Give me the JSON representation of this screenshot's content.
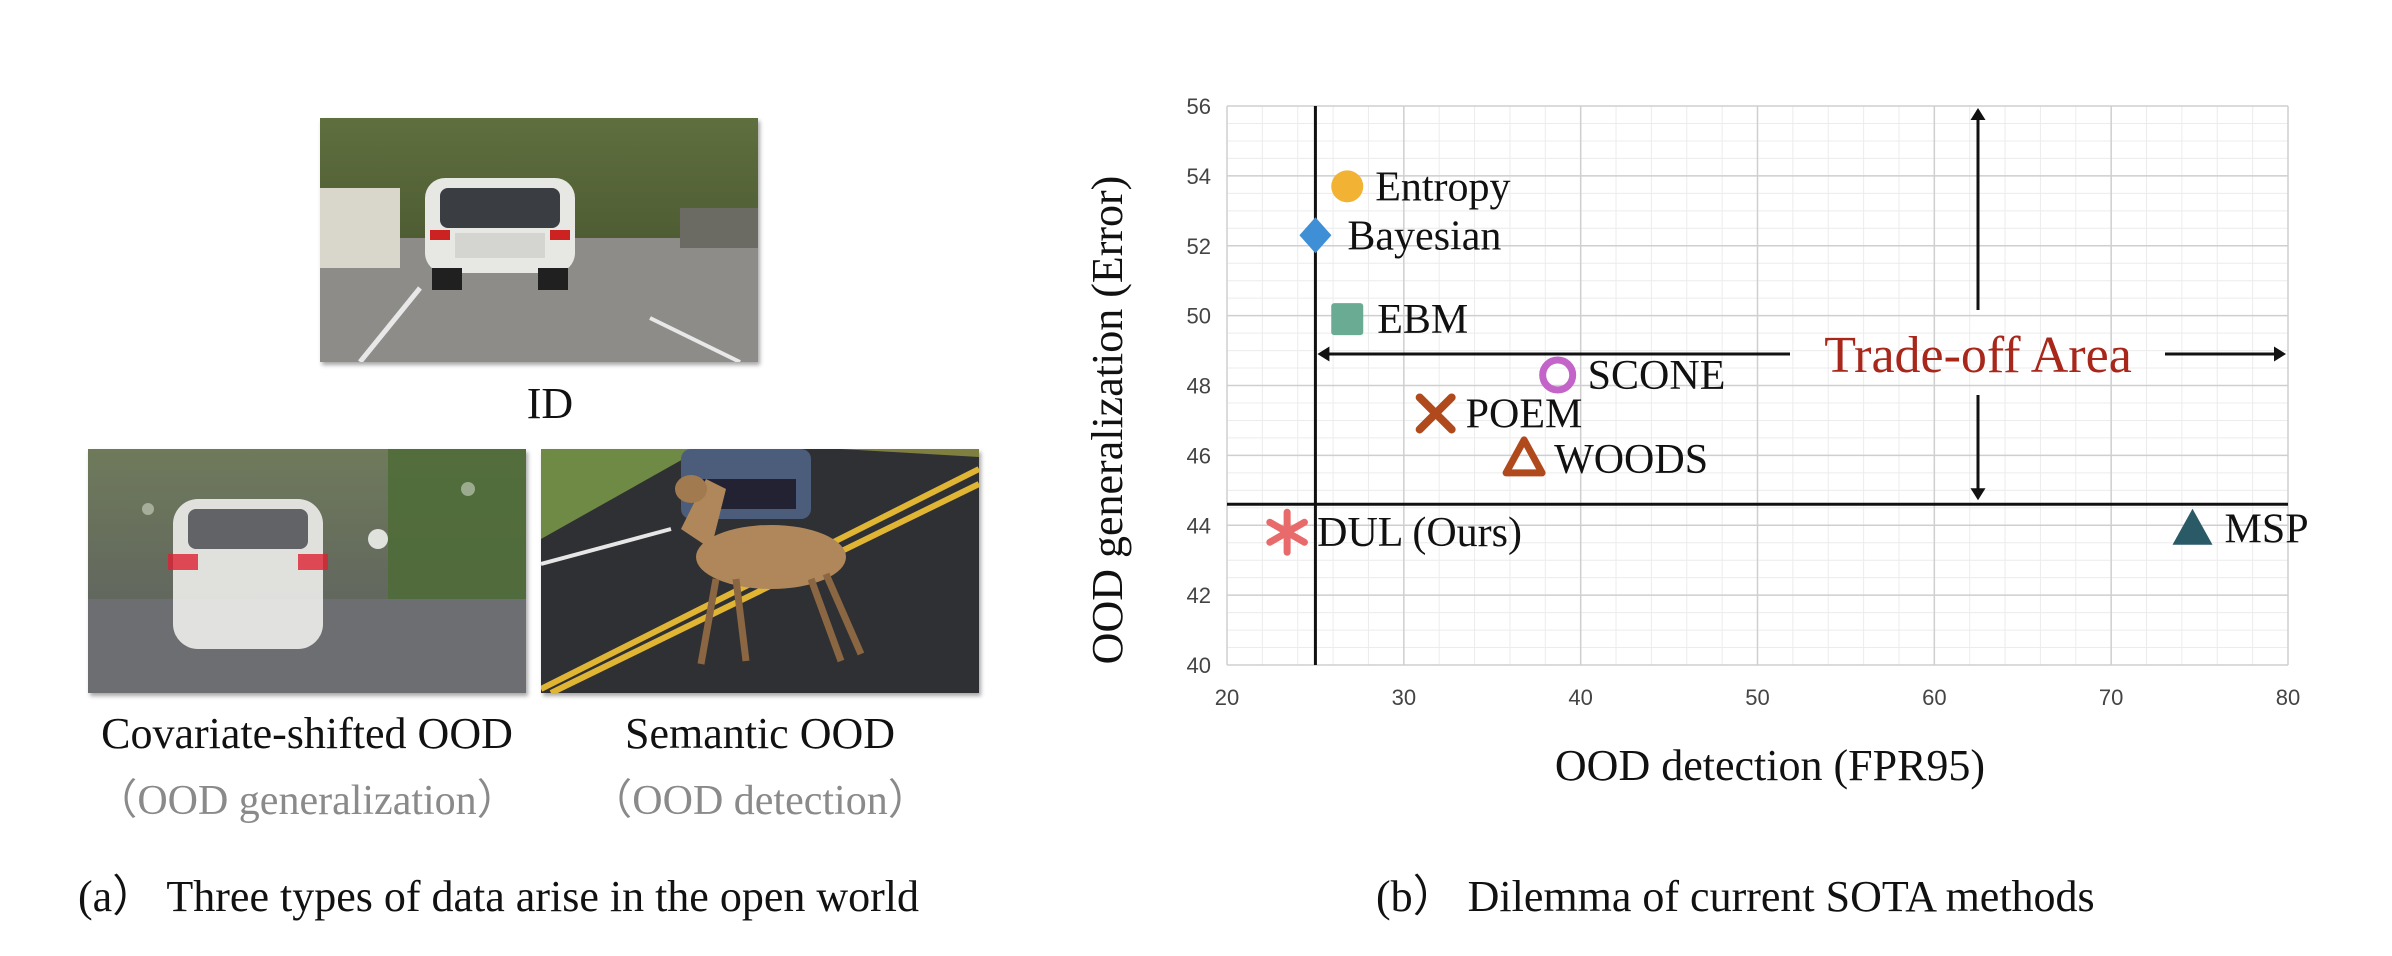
{
  "panel_a": {
    "images": {
      "id": {
        "caption": "ID",
        "content": "car-rear-photo"
      },
      "covariate": {
        "caption": "Covariate-shifted OOD",
        "sub": "（OOD generalization）",
        "content": "rainy-car-photo"
      },
      "semantic": {
        "caption": "Semantic OOD",
        "sub": "（OOD detection）",
        "content": "deer-crossing-road-photo"
      }
    },
    "subcaption": "(a） Three types of data arise in the open world"
  },
  "panel_b": {
    "subcaption": "(b） Dilemma of current SOTA methods"
  },
  "chart_data": {
    "type": "scatter",
    "xlabel": "OOD detection (FPR95)",
    "ylabel": "OOD generalization (Error)",
    "xlim": [
      20,
      80
    ],
    "ylim": [
      40,
      56
    ],
    "xticks": [
      20,
      30,
      40,
      50,
      60,
      70,
      80
    ],
    "yticks": [
      40,
      42,
      44,
      46,
      48,
      50,
      52,
      54,
      56
    ],
    "grid": true,
    "points": [
      {
        "name": "Entropy",
        "x": 26.8,
        "y": 53.7,
        "marker": "circle",
        "color": "#f2b233"
      },
      {
        "name": "Bayesian",
        "x": 25.0,
        "y": 52.3,
        "marker": "diamond",
        "color": "#3f8fd6"
      },
      {
        "name": "EBM",
        "x": 26.8,
        "y": 49.9,
        "marker": "square",
        "color": "#6aab94"
      },
      {
        "name": "SCONE",
        "x": 38.7,
        "y": 48.3,
        "marker": "ring",
        "color": "#c264c8"
      },
      {
        "name": "POEM",
        "x": 31.8,
        "y": 47.2,
        "marker": "x",
        "color": "#b04a1c"
      },
      {
        "name": "WOODS",
        "x": 36.8,
        "y": 45.9,
        "marker": "triangle-open",
        "color": "#b04a1c"
      },
      {
        "name": "DUL (Ours)",
        "x": 23.4,
        "y": 43.8,
        "marker": "asterisk",
        "color": "#e86a6a"
      },
      {
        "name": "MSP",
        "x": 74.6,
        "y": 43.9,
        "marker": "triangle",
        "color": "#2a5a66"
      }
    ],
    "reference_lines": {
      "vertical_x": 25.0,
      "horizontal_y": 44.6
    },
    "annotation": {
      "text": "Trade-off Area",
      "color": "#a8261a"
    }
  }
}
